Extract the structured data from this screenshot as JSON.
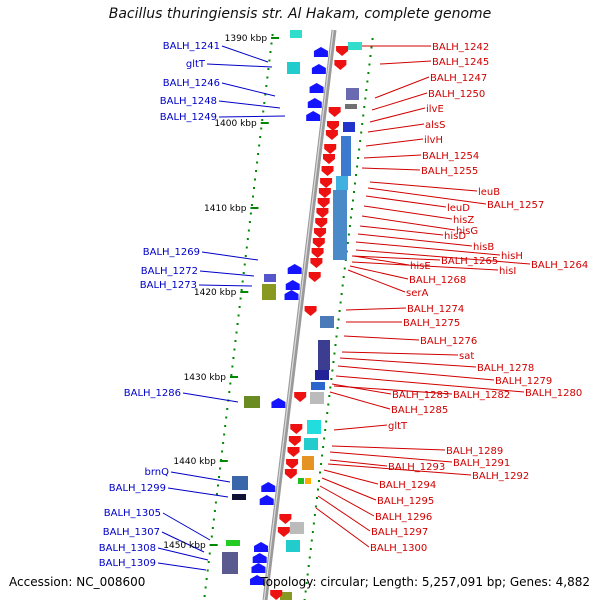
{
  "title": "Bacillus thuringiensis str. Al Hakam, complete genome",
  "footer": {
    "accession": "Accession: NC_008600",
    "stats": "Topology: circular; Length: 5,257,091 bp; Genes: 4,882"
  },
  "colors": {
    "forward_label": "#0000c8",
    "reverse_label": "#d00000",
    "forward_arrow": "#1414ff",
    "reverse_arrow": "#ee1111",
    "backbone": "#999999",
    "tick": "#008800"
  },
  "kbp_ticks": [
    "1390 kbp",
    "1400 kbp",
    "1410 kbp",
    "1420 kbp",
    "1430 kbp",
    "1440 kbp",
    "1450 kbp"
  ],
  "left_genes": [
    "BALH_1241",
    "gltT",
    "BALH_1246",
    "BALH_1248",
    "BALH_1249",
    "BALH_1269",
    "BALH_1272",
    "BALH_1273",
    "BALH_1286",
    "brnQ",
    "BALH_1299",
    "BALH_1305",
    "BALH_1307",
    "BALH_1308",
    "BALH_1309"
  ],
  "right_genes": [
    "BALH_1242",
    "BALH_1245",
    "BALH_1247",
    "BALH_1250",
    "ilvE",
    "alsS",
    "ilvH",
    "BALH_1254",
    "BALH_1255",
    "leuB",
    "BALH_1257",
    "leuD",
    "hisZ",
    "hisG",
    "hisD",
    "hisB",
    "hisH",
    "BALH_1264",
    "hisE",
    "BALH_1265",
    "hisI",
    "BALH_1268",
    "serA",
    "BALH_1274",
    "BALH_1275",
    "BALH_1276",
    "sat",
    "BALH_1278",
    "BALH_1279",
    "BALH_1280",
    "BALH_1283",
    "BALH_1282",
    "BALH_1285",
    "gltT",
    "BALH_1289",
    "BALH_1291",
    "BALH_1293",
    "BALH_1292",
    "BALH_1294",
    "BALH_1295",
    "BALH_1296",
    "BALH_1297",
    "BALH_1300"
  ]
}
